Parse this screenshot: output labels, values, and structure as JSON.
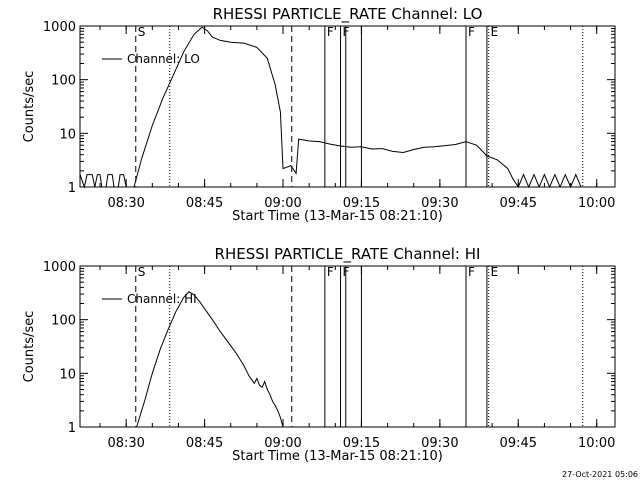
{
  "footer_timestamp": "27-Oct-2021 05:06",
  "chart_data": [
    {
      "type": "line",
      "title": "RHESSI PARTICLE_RATE Channel: LO",
      "xlabel": "Start Time (13-Mar-15 08:21:10)",
      "ylabel": "Counts/sec",
      "y_scale": "log",
      "ylim": [
        1,
        1000
      ],
      "xlim": [
        "08:21:10",
        "10:03:30"
      ],
      "x_ticks": [
        "08:30",
        "08:45",
        "09:00",
        "09:15",
        "09:30",
        "09:45",
        "10:00"
      ],
      "y_ticks": [
        "1",
        "10",
        "100",
        "1000"
      ],
      "legend": "top-left",
      "series": [
        {
          "name": "Channel: LO",
          "points": [
            [
              "08:21:10",
              1.7
            ],
            [
              "08:22:00",
              1.0
            ],
            [
              "08:22:30",
              1.7
            ],
            [
              "08:23:30",
              1.7
            ],
            [
              "08:24:00",
              1.0
            ],
            [
              "08:24:30",
              1.7
            ],
            [
              "08:25:00",
              1.7
            ],
            [
              "08:25:20",
              1.0
            ],
            [
              "08:26:10",
              1.0
            ],
            [
              "08:26:30",
              1.7
            ],
            [
              "08:27:20",
              1.7
            ],
            [
              "08:27:40",
              1.0
            ],
            [
              "08:28:30",
              1.0
            ],
            [
              "08:28:50",
              1.7
            ],
            [
              "08:29:30",
              1.7
            ],
            [
              "08:30:00",
              1.0
            ],
            [
              "08:31:30",
              1.0
            ],
            [
              "08:33:00",
              3.5
            ],
            [
              "08:35:00",
              14
            ],
            [
              "08:37:00",
              45
            ],
            [
              "08:39:00",
              120
            ],
            [
              "08:41:00",
              330
            ],
            [
              "08:43:00",
              700
            ],
            [
              "08:44:30",
              950
            ],
            [
              "08:45:30",
              820
            ],
            [
              "08:46:30",
              620
            ],
            [
              "08:48:00",
              540
            ],
            [
              "08:50:00",
              500
            ],
            [
              "08:52:30",
              480
            ],
            [
              "08:55:00",
              400
            ],
            [
              "08:57:00",
              250
            ],
            [
              "08:58:30",
              80
            ],
            [
              "08:59:30",
              25
            ],
            [
              "09:00:00",
              2.2
            ],
            [
              "09:01:30",
              2.5
            ],
            [
              "09:02:30",
              1.8
            ],
            [
              "09:03:00",
              7.8
            ],
            [
              "09:05:00",
              7.2
            ],
            [
              "09:07:00",
              7.0
            ],
            [
              "09:09:00",
              6.3
            ],
            [
              "09:11:00",
              5.8
            ],
            [
              "09:13:00",
              5.5
            ],
            [
              "09:15:00",
              5.6
            ],
            [
              "09:17:00",
              5.1
            ],
            [
              "09:19:00",
              5.2
            ],
            [
              "09:21:00",
              4.6
            ],
            [
              "09:23:00",
              4.4
            ],
            [
              "09:25:00",
              5.0
            ],
            [
              "09:27:00",
              5.5
            ],
            [
              "09:29:00",
              5.6
            ],
            [
              "09:31:00",
              5.9
            ],
            [
              "09:33:00",
              6.2
            ],
            [
              "09:35:00",
              7.0
            ],
            [
              "09:37:00",
              6.0
            ],
            [
              "09:39:00",
              3.8
            ],
            [
              "09:41:00",
              3.2
            ],
            [
              "09:43:00",
              2.2
            ],
            [
              "09:44:00",
              1.4
            ],
            [
              "09:45:00",
              1.0
            ],
            [
              "09:46:00",
              1.7
            ],
            [
              "09:47:00",
              1.0
            ],
            [
              "09:48:00",
              1.7
            ],
            [
              "09:49:00",
              1.0
            ],
            [
              "09:50:00",
              1.7
            ],
            [
              "09:51:00",
              1.0
            ],
            [
              "09:52:00",
              1.7
            ],
            [
              "09:53:00",
              1.0
            ],
            [
              "09:54:00",
              1.7
            ],
            [
              "09:55:00",
              1.0
            ],
            [
              "09:56:00",
              1.7
            ],
            [
              "09:57:00",
              1.0
            ]
          ]
        }
      ],
      "markers": [
        {
          "time": "08:31:50",
          "style": "dashed",
          "label": "S"
        },
        {
          "time": "08:38:20",
          "style": "dotted",
          "label": ""
        },
        {
          "time": "09:01:40",
          "style": "dashed",
          "label": ""
        },
        {
          "time": "09:08:00",
          "style": "solid",
          "label": "F"
        },
        {
          "time": "09:11:00",
          "style": "solid",
          "label": "F"
        },
        {
          "time": "09:12:00",
          "style": "solid",
          "label": ""
        },
        {
          "time": "09:15:00",
          "style": "solid",
          "label": ""
        },
        {
          "time": "09:35:00",
          "style": "solid",
          "label": "F"
        },
        {
          "time": "09:39:00",
          "style": "solid",
          "label": ""
        },
        {
          "time": "09:39:20",
          "style": "dotted",
          "label": "E"
        },
        {
          "time": "09:57:20",
          "style": "dotted",
          "label": ""
        }
      ]
    },
    {
      "type": "line",
      "title": "RHESSI PARTICLE_RATE Channel: HI",
      "xlabel": "Start Time (13-Mar-15 08:21:10)",
      "ylabel": "Counts/sec",
      "y_scale": "log",
      "ylim": [
        1,
        1000
      ],
      "xlim": [
        "08:21:10",
        "10:03:30"
      ],
      "x_ticks": [
        "08:30",
        "08:45",
        "09:00",
        "09:15",
        "09:30",
        "09:45",
        "10:00"
      ],
      "y_ticks": [
        "1",
        "10",
        "100",
        "1000"
      ],
      "legend": "top-left",
      "series": [
        {
          "name": "Channel: HI",
          "points": [
            [
              "08:32:00",
              1.0
            ],
            [
              "08:33:30",
              3.0
            ],
            [
              "08:35:00",
              10
            ],
            [
              "08:36:30",
              28
            ],
            [
              "08:38:00",
              65
            ],
            [
              "08:39:30",
              140
            ],
            [
              "08:41:00",
              260
            ],
            [
              "08:42:00",
              330
            ],
            [
              "08:43:00",
              290
            ],
            [
              "08:44:00",
              220
            ],
            [
              "08:45:00",
              160
            ],
            [
              "08:46:30",
              100
            ],
            [
              "08:48:00",
              60
            ],
            [
              "08:49:30",
              38
            ],
            [
              "08:51:00",
              24
            ],
            [
              "08:52:30",
              14
            ],
            [
              "08:53:30",
              9
            ],
            [
              "08:54:30",
              6.5
            ],
            [
              "08:55:00",
              8
            ],
            [
              "08:55:30",
              6
            ],
            [
              "08:56:00",
              5.5
            ],
            [
              "08:56:30",
              7
            ],
            [
              "08:57:00",
              5
            ],
            [
              "08:57:30",
              4
            ],
            [
              "08:58:00",
              3
            ],
            [
              "08:58:30",
              2.5
            ],
            [
              "08:59:00",
              2
            ],
            [
              "08:59:30",
              1.5
            ],
            [
              "09:00:00",
              1.0
            ]
          ]
        }
      ],
      "markers": [
        {
          "time": "08:31:50",
          "style": "dashed",
          "label": "S"
        },
        {
          "time": "08:38:20",
          "style": "dotted",
          "label": ""
        },
        {
          "time": "09:01:40",
          "style": "dashed",
          "label": ""
        },
        {
          "time": "09:08:00",
          "style": "solid",
          "label": "F"
        },
        {
          "time": "09:11:00",
          "style": "solid",
          "label": "F"
        },
        {
          "time": "09:12:00",
          "style": "solid",
          "label": ""
        },
        {
          "time": "09:15:00",
          "style": "solid",
          "label": ""
        },
        {
          "time": "09:35:00",
          "style": "solid",
          "label": "F"
        },
        {
          "time": "09:39:00",
          "style": "solid",
          "label": ""
        },
        {
          "time": "09:39:20",
          "style": "dotted",
          "label": "E"
        },
        {
          "time": "09:57:20",
          "style": "dotted",
          "label": ""
        }
      ]
    }
  ]
}
